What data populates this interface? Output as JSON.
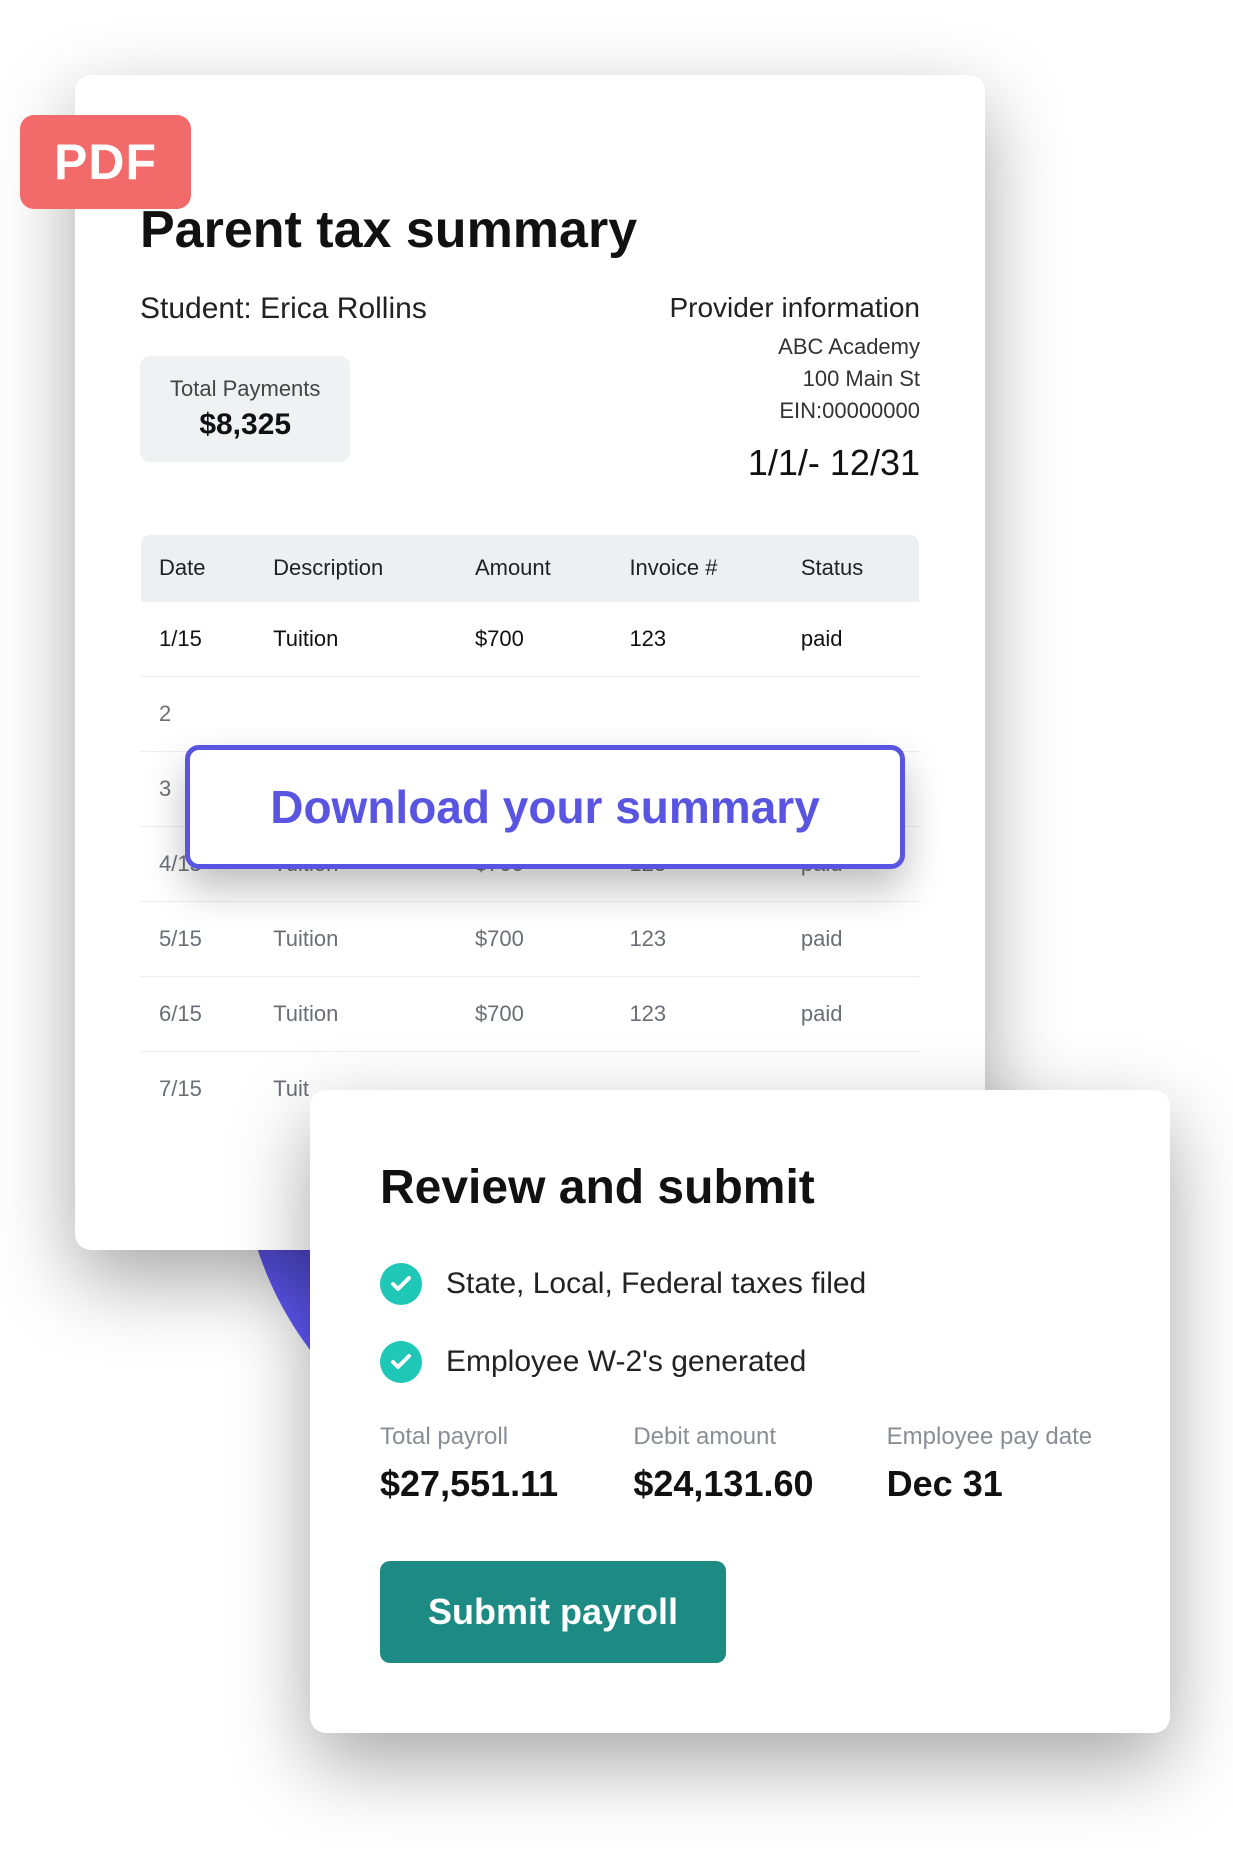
{
  "colors": {
    "accent_purple": "#635bff",
    "pdf_badge_bg": "#f36a6a",
    "download_border": "#5a55e0",
    "check_bg": "#1ec7b6",
    "submit_bg": "#1d8a84",
    "card_bg": "#ffffff",
    "text_primary": "#111111",
    "text_muted": "#6b6e76",
    "table_header_bg": "#edf0f3",
    "total_pill_bg": "#f0f1f3"
  },
  "pdf_badge": "PDF",
  "tax": {
    "title": "Parent tax summary",
    "student_label": "Student:",
    "student_name": "Erica Rollins",
    "provider_title": "Provider information",
    "provider_name": "ABC Academy",
    "provider_address": "100 Main St",
    "provider_ein": "EIN:00000000",
    "date_range": "1/1/- 12/31",
    "total_label": "Total Payments",
    "total_amount": "$8,325",
    "columns": [
      "Date",
      "Description",
      "Amount",
      "Invoice #",
      "Status"
    ],
    "rows": [
      {
        "date": "1/15",
        "desc": "Tuition",
        "amount": "$700",
        "invoice": "123",
        "status": "paid"
      },
      {
        "date": "2",
        "desc": "",
        "amount": "",
        "invoice": "",
        "status": ""
      },
      {
        "date": "3",
        "desc": "",
        "amount": "",
        "invoice": "",
        "status": ""
      },
      {
        "date": "4/15",
        "desc": "Tuition",
        "amount": "$700",
        "invoice": "123",
        "status": "paid"
      },
      {
        "date": "5/15",
        "desc": "Tuition",
        "amount": "$700",
        "invoice": "123",
        "status": "paid"
      },
      {
        "date": "6/15",
        "desc": "Tuition",
        "amount": "$700",
        "invoice": "123",
        "status": "paid"
      },
      {
        "date": "7/15",
        "desc": "Tuit",
        "amount": "",
        "invoice": "",
        "status": ""
      }
    ]
  },
  "download_label": "Download your summary",
  "payroll": {
    "title": "Review and submit",
    "checks": [
      "State, Local, Federal taxes filed",
      "Employee W-2's generated"
    ],
    "cols": [
      {
        "label": "Total payroll",
        "value": "$27,551.11"
      },
      {
        "label": "Debit amount",
        "value": "$24,131.60"
      },
      {
        "label": "Employee pay date",
        "value": "Dec 31"
      }
    ],
    "submit_label": "Submit payroll"
  }
}
